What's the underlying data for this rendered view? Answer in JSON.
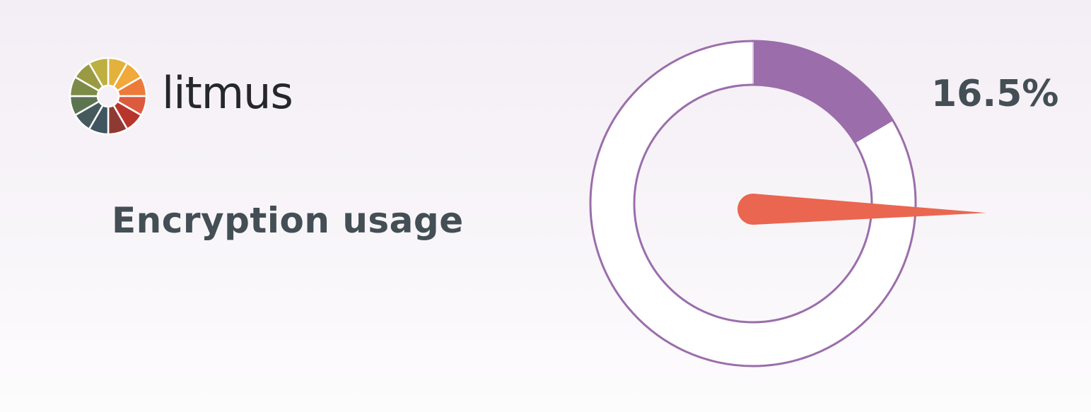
{
  "brand": {
    "name": "litmus",
    "wheel_colors": [
      "#e3b23c",
      "#f0a93a",
      "#ec7b3b",
      "#dc5a3e",
      "#b8352b",
      "#8e3a32",
      "#3f5560",
      "#465a5e",
      "#5c7550",
      "#7c8b48",
      "#9a9a44",
      "#bdb040"
    ]
  },
  "page": {
    "title": "Encryption usage"
  },
  "chart_data": {
    "type": "gauge",
    "value": 16.5,
    "value_label": "16.5%",
    "min": 0,
    "max": 100,
    "colors": {
      "filled": "#9b6dab",
      "track": "#ffffff",
      "outline": "#9b6dab",
      "needle": "#ea6650",
      "label": "#434e55"
    }
  }
}
